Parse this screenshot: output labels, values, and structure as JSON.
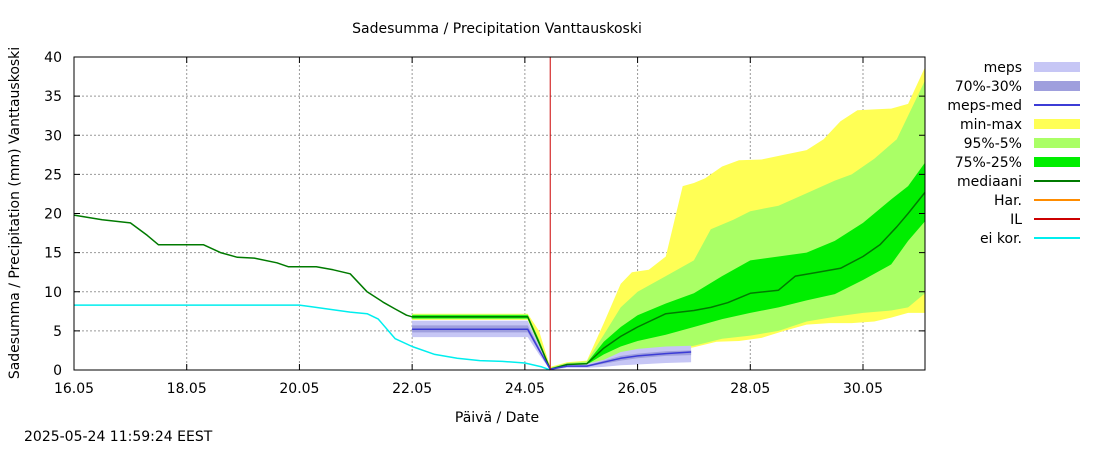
{
  "timestamp": "2025-05-24 11:59:24 EEST",
  "colors": {
    "meps": "#c6c6f5",
    "meps_70_30": "#9f9fdd",
    "meps_med": "#3c3cd6",
    "min_max": "#ffff55",
    "p95_5": "#aaff66",
    "p75_25": "#00ee00",
    "mediaani": "#007a00",
    "har": "#ff8c00",
    "il": "#cc0000",
    "ei_kor": "#00eeee",
    "grid": "#999999"
  },
  "chart_data": {
    "type": "line",
    "title": "Sadesumma / Precipitation  Vanttauskoski",
    "xlabel": "Päivä / Date",
    "ylabel": "Sadesumma / Precipitation (mm)  Vanttauskoski",
    "x_unit": "days from 16.05",
    "xlim": [
      0,
      15.1
    ],
    "ylim": [
      0,
      40
    ],
    "y_ticks": [
      0,
      5,
      10,
      15,
      20,
      25,
      30,
      35,
      40
    ],
    "x_ticks": [
      {
        "x": 0,
        "label": "16.05"
      },
      {
        "x": 2,
        "label": "18.05"
      },
      {
        "x": 4,
        "label": "20.05"
      },
      {
        "x": 6,
        "label": "22.05"
      },
      {
        "x": 8,
        "label": "24.05"
      },
      {
        "x": 10,
        "label": "26.05"
      },
      {
        "x": 12,
        "label": "28.05"
      },
      {
        "x": 14,
        "label": "30.05"
      }
    ],
    "grid": true,
    "legend_position": "right",
    "legend": [
      {
        "label": "meps",
        "style": "band",
        "color_key": "meps"
      },
      {
        "label": "70%-30%",
        "style": "band",
        "color_key": "meps_70_30"
      },
      {
        "label": "meps-med",
        "style": "line",
        "color_key": "meps_med"
      },
      {
        "label": "min-max",
        "style": "band",
        "color_key": "min_max"
      },
      {
        "label": "95%-5%",
        "style": "band",
        "color_key": "p95_5"
      },
      {
        "label": "75%-25%",
        "style": "band",
        "color_key": "p75_25"
      },
      {
        "label": "mediaani",
        "style": "line",
        "color_key": "mediaani"
      },
      {
        "label": "Har.",
        "style": "line",
        "color_key": "har"
      },
      {
        "label": "IL",
        "style": "line",
        "color_key": "il"
      },
      {
        "label": "ei kor.",
        "style": "line",
        "color_key": "ei_kor"
      }
    ],
    "vertical_line": {
      "x": 8.45,
      "color_key": "il"
    },
    "series": {
      "ei_kor": {
        "x": [
          0,
          4,
          4.2,
          4.5,
          4.9,
          5.2,
          5.4,
          5.7,
          6.0,
          6.4,
          6.8,
          7.2,
          7.6,
          8.0,
          8.3,
          8.45
        ],
        "y": [
          8.3,
          8.3,
          8.1,
          7.8,
          7.4,
          7.2,
          6.5,
          4.0,
          3.0,
          2.0,
          1.5,
          1.2,
          1.1,
          0.9,
          0.4,
          0
        ]
      },
      "history_median": {
        "x": [
          0,
          0.5,
          1.0,
          1.3,
          1.5,
          1.8,
          2.3,
          2.6,
          2.9,
          3.2,
          3.6,
          3.8,
          4.3,
          4.6,
          4.9,
          5.2,
          5.5,
          5.7,
          5.9,
          6.0
        ],
        "y": [
          19.8,
          19.2,
          18.8,
          17.2,
          16.0,
          16.0,
          16.0,
          15.0,
          14.4,
          14.3,
          13.7,
          13.2,
          13.2,
          12.8,
          12.3,
          10.0,
          8.6,
          7.8,
          7.0,
          6.8
        ]
      },
      "ens_min": {
        "x": [
          6,
          8.05,
          8.25,
          8.45,
          8.75,
          9.1,
          9.4,
          9.7,
          10.0,
          10.3,
          10.7,
          11.0,
          11.4,
          11.8,
          12.2,
          12.6,
          13.0,
          13.4,
          13.8,
          14.2,
          14.5,
          14.8,
          15.1
        ],
        "y": [
          6.4,
          6.4,
          3.0,
          0,
          0.5,
          0.6,
          0.9,
          1.2,
          1.5,
          1.8,
          2.5,
          2.9,
          3.6,
          3.7,
          4.1,
          5.0,
          5.8,
          6.0,
          6.0,
          6.2,
          6.7,
          7.3,
          7.3
        ]
      },
      "ens_max": {
        "x": [
          6,
          8.05,
          8.25,
          8.45,
          8.75,
          9.1,
          9.4,
          9.7,
          9.9,
          10.2,
          10.5,
          10.8,
          11.0,
          11.2,
          11.5,
          11.8,
          12.2,
          12.6,
          13.0,
          13.3,
          13.6,
          13.9,
          14.2,
          14.5,
          14.8,
          15.1
        ],
        "y": [
          7.2,
          7.2,
          5.0,
          0.4,
          1.0,
          1.2,
          6.0,
          11.0,
          12.5,
          12.8,
          14.5,
          23.5,
          23.9,
          24.5,
          26.0,
          26.8,
          26.9,
          27.5,
          28.1,
          29.5,
          31.8,
          33.2,
          33.3,
          33.4,
          34.0,
          38.7
        ]
      },
      "ens_p5": {
        "x": [
          6,
          8.05,
          8.25,
          8.45,
          8.75,
          9.1,
          9.4,
          9.7,
          10.0,
          10.5,
          11.0,
          11.5,
          12.0,
          12.5,
          13.0,
          13.5,
          14.0,
          14.5,
          14.8,
          15.1
        ],
        "y": [
          6.5,
          6.5,
          3.0,
          0,
          0.5,
          0.6,
          1.0,
          1.6,
          2.0,
          2.6,
          3.1,
          4.0,
          4.4,
          5.0,
          6.2,
          6.8,
          7.3,
          7.6,
          8.0,
          9.8
        ]
      },
      "ens_p95": {
        "x": [
          6,
          8.05,
          8.25,
          8.45,
          8.75,
          9.1,
          9.4,
          9.7,
          10.0,
          10.5,
          11.0,
          11.3,
          11.7,
          12.0,
          12.5,
          13.0,
          13.5,
          13.8,
          14.2,
          14.6,
          15.1
        ],
        "y": [
          7.1,
          7.1,
          4.0,
          0.3,
          0.9,
          1.1,
          4.5,
          8.0,
          10.0,
          12.0,
          14.0,
          18.0,
          19.2,
          20.3,
          21.0,
          22.6,
          24.2,
          25.0,
          27.0,
          29.5,
          37.0
        ]
      },
      "ens_p25": {
        "x": [
          6,
          8.05,
          8.25,
          8.45,
          8.75,
          9.1,
          9.4,
          9.7,
          10.0,
          10.5,
          11.0,
          11.5,
          12.0,
          12.5,
          13.0,
          13.5,
          14.0,
          14.5,
          14.8,
          15.1
        ],
        "y": [
          6.6,
          6.6,
          3.2,
          0.05,
          0.6,
          0.7,
          2.0,
          3.0,
          3.7,
          4.5,
          5.5,
          6.5,
          7.3,
          8.0,
          8.9,
          9.7,
          11.5,
          13.5,
          16.5,
          19.0
        ]
      },
      "ens_p75": {
        "x": [
          6,
          8.05,
          8.25,
          8.45,
          8.75,
          9.1,
          9.4,
          9.7,
          10.0,
          10.5,
          11.0,
          11.5,
          12.0,
          12.5,
          13.0,
          13.5,
          14.0,
          14.5,
          14.8,
          15.1
        ],
        "y": [
          7.0,
          7.0,
          3.8,
          0.2,
          0.8,
          0.9,
          3.6,
          5.5,
          7.0,
          8.5,
          9.8,
          12.0,
          14.0,
          14.5,
          15.0,
          16.5,
          18.8,
          21.8,
          23.5,
          26.5
        ]
      },
      "ens_median": {
        "x": [
          6,
          8.05,
          8.25,
          8.45,
          8.75,
          9.1,
          9.4,
          9.7,
          10.0,
          10.5,
          11.0,
          11.3,
          11.6,
          12.0,
          12.5,
          12.8,
          13.2,
          13.6,
          14.0,
          14.3,
          14.6,
          14.8,
          15.1
        ],
        "y": [
          6.8,
          6.8,
          3.5,
          0.1,
          0.7,
          0.8,
          2.8,
          4.3,
          5.5,
          7.2,
          7.6,
          8.0,
          8.6,
          9.8,
          10.2,
          12.0,
          12.5,
          13.0,
          14.5,
          16.0,
          18.3,
          20.0,
          22.7
        ]
      },
      "meps_min": {
        "x": [
          6,
          8.05,
          8.25,
          8.45,
          8.75,
          9.1,
          9.4,
          9.7,
          10.0,
          10.5,
          10.95
        ],
        "y": [
          4.2,
          4.2,
          2.0,
          0,
          0.3,
          0.3,
          0.4,
          0.6,
          0.7,
          0.9,
          1.0
        ]
      },
      "meps_max": {
        "x": [
          6,
          8.05,
          8.25,
          8.45,
          8.75,
          9.1,
          9.4,
          9.7,
          10.0,
          10.5,
          10.95
        ],
        "y": [
          6.3,
          6.3,
          3.2,
          0.2,
          0.8,
          0.8,
          1.3,
          2.3,
          2.7,
          3.0,
          3.1
        ]
      },
      "meps_p30": {
        "x": [
          6,
          8.05,
          8.25,
          8.45,
          8.75,
          9.1,
          9.4,
          9.7,
          10.0,
          10.5,
          10.95
        ],
        "y": [
          4.8,
          4.8,
          2.4,
          0.05,
          0.4,
          0.4,
          0.8,
          1.2,
          1.5,
          1.8,
          1.9
        ]
      },
      "meps_p70": {
        "x": [
          6,
          8.05,
          8.25,
          8.45,
          8.75,
          9.1,
          9.4,
          9.7,
          10.0,
          10.5,
          10.95
        ],
        "y": [
          5.7,
          5.7,
          2.9,
          0.15,
          0.6,
          0.6,
          1.2,
          1.8,
          2.1,
          2.4,
          2.5
        ]
      },
      "meps_median": {
        "x": [
          6,
          8.05,
          8.25,
          8.45,
          8.75,
          9.1,
          9.4,
          9.7,
          10.0,
          10.5,
          10.95
        ],
        "y": [
          5.2,
          5.2,
          2.6,
          0.1,
          0.5,
          0.5,
          1.0,
          1.5,
          1.8,
          2.1,
          2.3
        ]
      }
    }
  }
}
